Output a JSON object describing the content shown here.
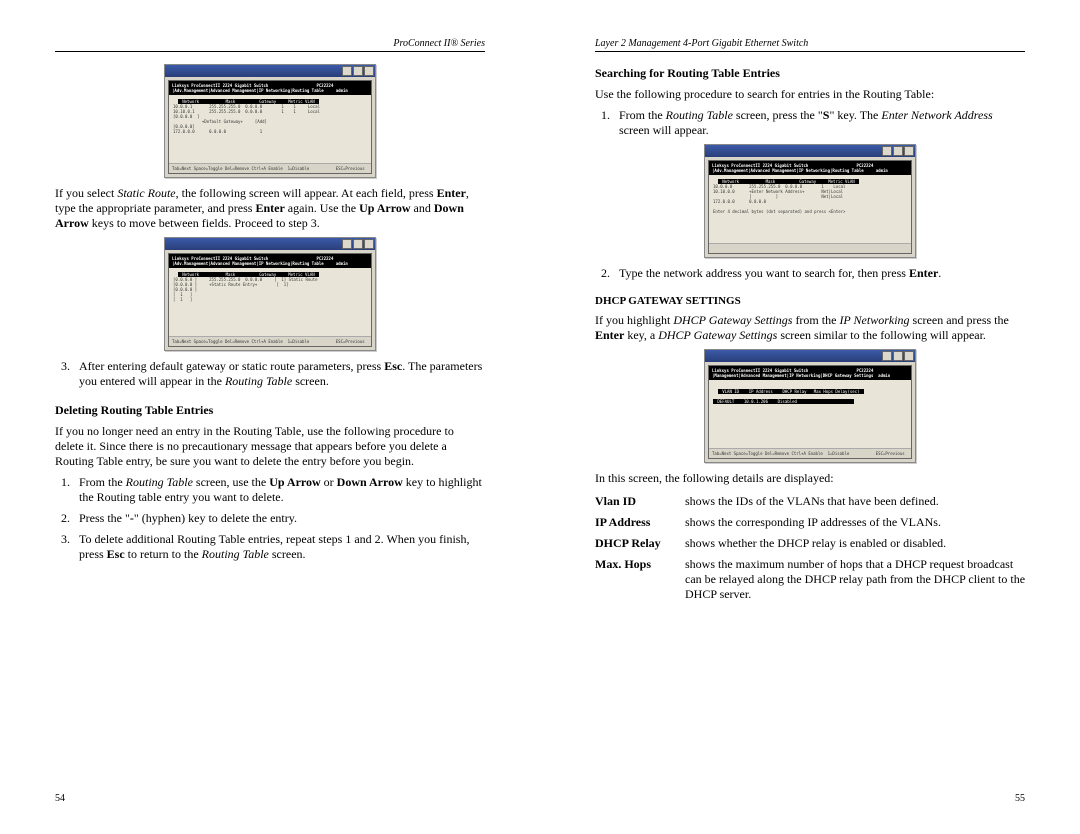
{
  "colors": {
    "text": "#000000",
    "background": "#ffffff",
    "figure_bg": "#e8e4d8",
    "figure_banner": "#000000",
    "figure_titlebar": "#2a3f7a"
  },
  "left_page": {
    "header": "ProConnect II® Series",
    "page_number": "54",
    "para_static_route_pre": "If you select ",
    "para_static_route_italic": "Static Route",
    "para_static_route_post": ", the following screen will appear. At each field, press ",
    "enter1": "Enter",
    "para_static_route_mid": ", type the appropriate parameter, and press ",
    "enter2": "Enter",
    "para_static_route_tail": " again. Use the ",
    "uparrow": "Up Arrow",
    "and": " and ",
    "downarrow": "Down Arrow",
    "para_static_route_end": " keys to move between fields. Proceed to step 3.",
    "step3_a": "After entering default gateway or static route parameters, press ",
    "esc": "Esc",
    "step3_b": ". The parameters you entered will appear in the ",
    "routing_table_i": "Routing Table",
    "step3_c": " screen.",
    "del_heading": "Deleting Routing Table Entries",
    "del_para": "If you no longer need an entry in the Routing Table, use the following procedure to delete it.  Since there is no precautionary message that appears before you delete a Routing Table entry, be sure you want to delete the entry before you begin.",
    "del_s1_a": "From the ",
    "del_s1_i": "Routing Table",
    "del_s1_b": " screen, use the ",
    "del_s1_up": "Up Arrow",
    "del_s1_or": " or ",
    "del_s1_down": "Down Arrow",
    "del_s1_c": " key to highlight the Routing table entry you want to delete.",
    "del_s2_a": "Press the \"",
    "del_s2_hyphen": "-",
    "del_s2_b": "\" (hyphen) key to delete the entry.",
    "del_s3_a": "To delete additional Routing Table entries, repeat steps 1 and 2. When you finish, press ",
    "del_s3_esc": "Esc",
    "del_s3_b": " to return to the ",
    "del_s3_i": "Routing Table",
    "del_s3_c": " screen.",
    "fig1": {
      "banner_l1": "Linksys ProConnectII 2224 Gigabit Switch                    PC22224",
      "banner_l2": "|Adv.Management|Advanced Management|IP Networking|Routing Table     admin",
      "headers": " Network           Mask          Gateway     Metric VLAN ",
      "rows": "10.0.0.1       255.255.255.0  0.0.0.0        1    1     Local\n10.10.0.1      255.255.255.0  0.0.0.0        1    1     Local\n[0.0.0.0  ]\n            +Default Gateway+     [Add]\n[0.0.0.0]\n172.0.0.0      0.0.0.0              1",
      "bottom": "Tab=Next Space=Toggle Del=Remove Ctrl+A Enable  1=Disable           ESC=Previous"
    },
    "fig2": {
      "banner_l1": "Linksys ProConnectII 2224 Gigabit Switch                    PC22224",
      "banner_l2": "|Adv.Management|Advanced Management|IP Networking|Routing Table     admin",
      "headers": " Network           Mask          Gateway     Metric VLAN ",
      "rows": "[0.0.0.0 ]     255.255.255.0  0.0.0.0     [  1] Static Route\n[0.0.0.0 ]     +Static Route Entry+        [  1]\n[0.0.0.0 ]\n[  1   ]\n[  1   ]",
      "bottom": "Tab=Next Space=Toggle Del=Remove Ctrl+A Enable  1=Disable           ESC=Previous"
    }
  },
  "right_page": {
    "header": "Layer 2 Management 4-Port Gigabit Ethernet Switch",
    "page_number": "55",
    "search_heading": "Searching for Routing Table Entries",
    "search_para": "Use the following procedure to search for entries in the Routing Table:",
    "s1_a": "From the ",
    "s1_i": "Routing Table",
    "s1_b": " screen, press the \"",
    "s1_s": "S",
    "s1_c": "\" key. The ",
    "s1_i2": "Enter Network Address",
    "s1_d": " screen will appear.",
    "s2_a": "Type the network address you want to search for, then press ",
    "s2_enter": "Enter",
    "s2_b": ".",
    "dhcp_heading": "DHCP GATEWAY SETTINGS",
    "dhcp_p_a": "If you highlight ",
    "dhcp_p_i1": "DHCP Gateway Settings",
    "dhcp_p_b": " from the ",
    "dhcp_p_i2": "IP Networking",
    "dhcp_p_c": " screen and press the ",
    "dhcp_p_enter": "Enter",
    "dhcp_p_d": " key, a ",
    "dhcp_p_i3": "DHCP Gateway Settings",
    "dhcp_p_e": " screen similar to the following will appear.",
    "dhcp_details": "In this screen, the following details are displayed:",
    "defs": [
      {
        "term": "Vlan ID",
        "def": "shows the IDs of the VLANs that have been defined."
      },
      {
        "term": "IP Address",
        "def": "shows the corresponding IP addresses of the VLANs."
      },
      {
        "term": "DHCP Relay",
        "def": "shows whether the DHCP relay is enabled or disabled."
      },
      {
        "term": "Max. Hops",
        "def": "shows the maximum number of hops that a DHCP request broadcast can be relayed along the DHCP relay path from the DHCP client to the DHCP server."
      }
    ],
    "fig3": {
      "banner_l1": "Linksys ProConnectII 2224 Gigabit Switch                    PC22224",
      "banner_l2": "|Adv.Management|Advanced Management|IP Networking|Routing Table     admin",
      "headers": " Network           Mask          Gateway     Metric VLAN ",
      "rows": "10.0.0.0       255.255.255.0  0.0.0.0        1    Local\n10.10.0.0      +Enter Network Address+       Net|Local\n               [          ]                  Net|Local\n172.0.0.0      0.0.0.0",
      "footer_hint": "Enter 4 decimal bytes (dot separated) and press <Enter>",
      "bottom": " "
    },
    "fig4": {
      "banner_l1": "Linksys ProConnectII 2224 Gigabit Switch                    PC22224",
      "banner_l2": "|Management|Advanced Management|IP Networking|DHCP Gateway Settings  admin",
      "headers": " VLAN ID    IP Address    DHCP Relay   Max Hops Delay(sec) ",
      "rows": " DEFAULT    10.0.1.206    Disabled                       ",
      "bottom": "Tab=Next Space=Toggle Del=Remove Ctrl+A Enable  1=Disable           ESC=Previous"
    }
  }
}
